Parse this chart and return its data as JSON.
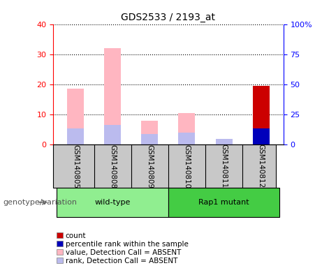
{
  "title": "GDS2533 / 2193_at",
  "samples": [
    "GSM140805",
    "GSM140808",
    "GSM140809",
    "GSM140810",
    "GSM140811",
    "GSM140812"
  ],
  "value_absent": [
    18.5,
    32.0,
    8.0,
    10.5,
    1.8,
    0.0
  ],
  "rank_absent": [
    5.5,
    6.5,
    3.5,
    4.0,
    2.0,
    0.0
  ],
  "count": [
    0.0,
    0.0,
    0.0,
    0.0,
    0.0,
    19.5
  ],
  "percentile": [
    0.0,
    0.0,
    0.0,
    0.0,
    0.0,
    5.5
  ],
  "ylim_left": [
    0,
    40
  ],
  "ylim_right": [
    0,
    100
  ],
  "yticks_left": [
    0,
    10,
    20,
    30,
    40
  ],
  "yticks_right": [
    0,
    25,
    50,
    75,
    100
  ],
  "ytick_labels_right": [
    "0",
    "25",
    "50",
    "75",
    "100%"
  ],
  "color_count": "#CC0000",
  "color_percentile": "#0000BB",
  "color_value_absent": "#FFB6C1",
  "color_rank_absent": "#BBBBEE",
  "legend_labels": [
    "count",
    "percentile rank within the sample",
    "value, Detection Call = ABSENT",
    "rank, Detection Call = ABSENT"
  ],
  "legend_colors": [
    "#CC0000",
    "#0000BB",
    "#FFB6C1",
    "#BBBBEE"
  ],
  "genotype_label": "genotype/variation",
  "label_panel_color": "#C8C8C8",
  "group_panel_color_wt": "#90EE90",
  "group_panel_color_rap": "#44CC44",
  "bar_width": 0.45
}
